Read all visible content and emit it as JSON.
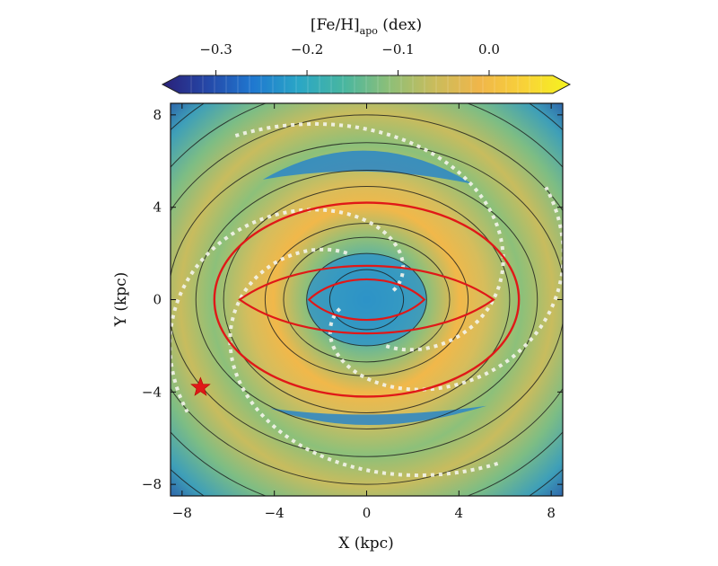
{
  "chart_data": {
    "type": "heatmap",
    "colorbar": {
      "label_main": "[Fe/H]",
      "label_sub": "apo",
      "label_unit": " (dex)",
      "ticks": [
        {
          "value": -0.3,
          "label": "−0.3"
        },
        {
          "value": -0.2,
          "label": "−0.2"
        },
        {
          "value": -0.1,
          "label": "−0.1"
        },
        {
          "value": 0.0,
          "label": "0.0"
        }
      ],
      "range": [
        -0.34,
        0.07
      ],
      "colors": [
        "#2a2078",
        "#2548a8",
        "#1f78d0",
        "#2aa6c6",
        "#48b6a0",
        "#8dbf78",
        "#c9bc5c",
        "#f0b64a",
        "#f8d238",
        "#f6f41e"
      ],
      "extend": "both"
    },
    "x_axis": {
      "label": "X (kpc)",
      "range": [
        -8.5,
        8.5
      ],
      "ticks": [
        {
          "value": -8,
          "label": "−8"
        },
        {
          "value": -4,
          "label": "−4"
        },
        {
          "value": 0,
          "label": "0"
        },
        {
          "value": 4,
          "label": "4"
        },
        {
          "value": 8,
          "label": "8"
        }
      ]
    },
    "y_axis": {
      "label": "Y (kpc)",
      "range": [
        -8.5,
        8.5
      ],
      "ticks": [
        {
          "value": 8,
          "label": "8"
        },
        {
          "value": 4,
          "label": "4"
        },
        {
          "value": 0,
          "label": "0"
        },
        {
          "value": -4,
          "label": "−4"
        },
        {
          "value": -8,
          "label": "−8"
        }
      ]
    },
    "overlays": {
      "red_outer_ring": {
        "color": "#e01818",
        "cx": 0,
        "cy": 0,
        "rx": 6.6,
        "ry": 4.2
      },
      "red_lens": {
        "color": "#e01818",
        "half_length": 5.5,
        "half_width": 1.5
      },
      "red_lens_inner": {
        "color": "#e01818",
        "half_length": 2.5,
        "half_width": 0.9
      },
      "sun_marker": {
        "x": -7.2,
        "y": -3.8,
        "color": "#e01818",
        "symbol": "star"
      },
      "spiral_arms": {
        "color": "#f4f4ec",
        "style": "dotted"
      }
    },
    "grid": false
  }
}
